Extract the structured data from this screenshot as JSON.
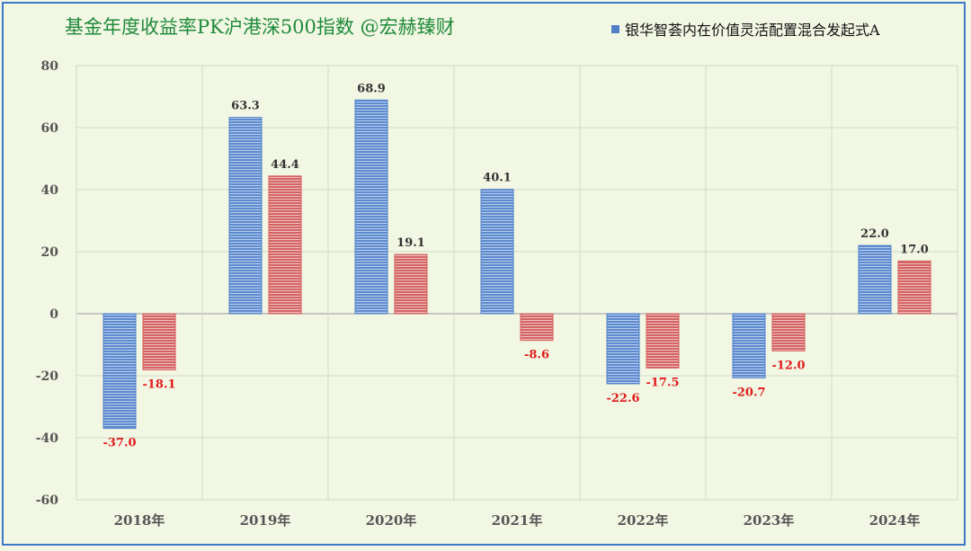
{
  "chart_data": {
    "type": "bar",
    "title": "基金年度收益率PK沪港深500指数  @宏赫臻财",
    "categories": [
      "2018年",
      "2019年",
      "2020年",
      "2021年",
      "2022年",
      "2023年",
      "2024年"
    ],
    "series": [
      {
        "name": "银华智荟内在价值灵活配置混合发起式A",
        "color": "#4f7fc7",
        "values": [
          -37.0,
          63.3,
          68.9,
          40.1,
          -22.6,
          -20.7,
          22.0
        ]
      },
      {
        "name": "",
        "color": "#d65a5a",
        "values": [
          -18.1,
          44.4,
          19.1,
          -8.6,
          -17.5,
          -12.0,
          17.0
        ]
      }
    ],
    "ylim": [
      -60,
      80
    ],
    "yticks": [
      80,
      60,
      40,
      20,
      0,
      -20,
      -40,
      -60
    ],
    "grid": true,
    "legend_position": "top-right",
    "xlabel": "",
    "ylabel": ""
  },
  "colors": {
    "background": "#f2f7e4",
    "border": "#3f78c9",
    "title": "#1f8a3a",
    "negative_label": "#e01b1b"
  }
}
